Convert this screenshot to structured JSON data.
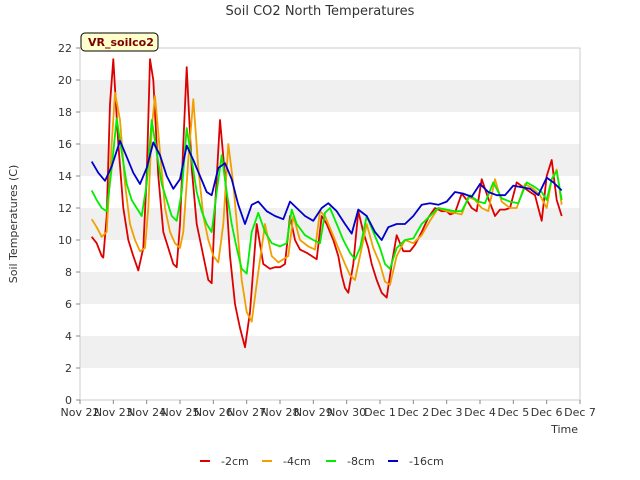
{
  "chart_data": {
    "type": "line",
    "title": "Soil CO2 North Temperatures",
    "xlabel": "Time",
    "ylabel": "Soil Temperatures (C)",
    "badge": "VR_soilco2",
    "ylim": [
      0,
      22
    ],
    "yticks": [
      0,
      2,
      4,
      6,
      8,
      10,
      12,
      14,
      16,
      18,
      20,
      22
    ],
    "xlim": [
      0,
      15
    ],
    "xticks": [
      "Nov 22",
      "Nov 23",
      "Nov 24",
      "Nov 25",
      "Nov 26",
      "Nov 27",
      "Nov 28",
      "Nov 29",
      "Nov 30",
      "Dec 1",
      "Dec 2",
      "Dec 3",
      "Dec 4",
      "Dec 5",
      "Dec 6",
      "Dec 7"
    ],
    "grid": "horizontal bands",
    "legend_position": "bottom",
    "series": [
      {
        "name": "-2cm",
        "color": "#dd0000",
        "x": [
          0.35,
          0.5,
          0.65,
          0.7,
          0.8,
          0.9,
          1.0,
          1.15,
          1.3,
          1.45,
          1.6,
          1.75,
          1.9,
          2.0,
          2.1,
          2.2,
          2.35,
          2.5,
          2.65,
          2.8,
          2.9,
          3.0,
          3.1,
          3.2,
          3.35,
          3.5,
          3.65,
          3.75,
          3.85,
          3.95,
          4.05,
          4.2,
          4.35,
          4.5,
          4.65,
          4.75,
          4.8,
          4.95,
          5.1,
          5.3,
          5.5,
          5.7,
          5.85,
          6.0,
          6.15,
          6.3,
          6.45,
          6.6,
          6.8,
          6.95,
          7.1,
          7.25,
          7.4,
          7.6,
          7.75,
          7.85,
          7.95,
          8.05,
          8.2,
          8.35,
          8.5,
          8.65,
          8.75,
          8.9,
          9.05,
          9.2,
          9.35,
          9.5,
          9.7,
          9.9,
          10.05,
          10.25,
          10.45,
          10.65,
          10.85,
          11.0,
          11.1,
          11.25,
          11.45,
          11.6,
          11.75,
          11.9,
          12.05,
          12.25,
          12.45,
          12.6,
          12.75,
          12.9,
          13.1,
          13.3,
          13.5,
          13.65,
          13.75,
          13.85,
          14.0,
          14.15,
          14.3,
          14.45
        ],
        "values": [
          10.2,
          9.8,
          9.0,
          8.9,
          11.5,
          18.5,
          21.3,
          16.0,
          12.0,
          10.0,
          9.0,
          8.1,
          9.5,
          14.0,
          21.3,
          20.0,
          14.0,
          10.5,
          9.5,
          8.5,
          8.3,
          11.0,
          16.0,
          20.8,
          14.5,
          11.0,
          9.5,
          8.5,
          7.5,
          7.3,
          12.0,
          17.5,
          14.0,
          9.0,
          6.0,
          5.0,
          4.5,
          3.3,
          5.5,
          11.0,
          8.5,
          8.2,
          8.3,
          8.3,
          8.5,
          11.5,
          10.0,
          9.4,
          9.2,
          9.0,
          8.8,
          11.5,
          11.0,
          10.0,
          9.0,
          7.8,
          7.0,
          6.7,
          8.5,
          11.8,
          10.5,
          9.5,
          8.5,
          7.5,
          6.7,
          6.4,
          8.5,
          10.3,
          9.3,
          9.3,
          9.7,
          10.5,
          11.4,
          12.0,
          11.8,
          11.8,
          11.6,
          11.7,
          12.9,
          12.5,
          12.0,
          11.8,
          13.8,
          12.6,
          11.5,
          11.9,
          11.9,
          12.0,
          13.6,
          13.3,
          13.0,
          12.8,
          12.0,
          11.2,
          14.0,
          15.0,
          12.5,
          11.5
        ]
      },
      {
        "name": "-4cm",
        "color": "#f0a000",
        "x": [
          0.35,
          0.5,
          0.65,
          0.8,
          0.95,
          1.05,
          1.2,
          1.35,
          1.5,
          1.65,
          1.8,
          1.95,
          2.05,
          2.15,
          2.25,
          2.4,
          2.55,
          2.7,
          2.85,
          3.0,
          3.1,
          3.25,
          3.4,
          3.55,
          3.7,
          3.85,
          4.0,
          4.15,
          4.3,
          4.45,
          4.6,
          4.75,
          4.85,
          5.0,
          5.15,
          5.35,
          5.55,
          5.75,
          5.95,
          6.1,
          6.25,
          6.4,
          6.6,
          6.85,
          7.05,
          7.2,
          7.35,
          7.55,
          7.75,
          7.95,
          8.1,
          8.25,
          8.4,
          8.6,
          8.8,
          9.0,
          9.15,
          9.3,
          9.5,
          9.75,
          10.0,
          10.25,
          10.5,
          10.75,
          11.0,
          11.2,
          11.45,
          11.65,
          11.85,
          12.05,
          12.25,
          12.45,
          12.65,
          12.9,
          13.1,
          13.35,
          13.6,
          13.8,
          14.0,
          14.15,
          14.3,
          14.45
        ],
        "values": [
          11.3,
          10.8,
          10.2,
          10.5,
          16.0,
          19.2,
          17.5,
          13.5,
          11.0,
          10.0,
          9.3,
          9.5,
          12.0,
          17.0,
          19.0,
          15.5,
          12.0,
          10.5,
          9.8,
          9.5,
          10.5,
          15.0,
          18.8,
          14.5,
          11.5,
          10.0,
          9.0,
          8.6,
          11.0,
          16.0,
          13.5,
          10.0,
          7.5,
          5.5,
          4.9,
          8.0,
          11.0,
          9.0,
          8.6,
          8.8,
          9.0,
          11.5,
          10.0,
          9.6,
          9.4,
          11.8,
          11.5,
          10.5,
          9.5,
          8.5,
          7.8,
          7.5,
          9.0,
          11.0,
          9.5,
          8.5,
          7.4,
          7.2,
          9.0,
          10.0,
          9.8,
          10.3,
          11.2,
          12.0,
          11.8,
          11.7,
          11.6,
          12.7,
          12.5,
          12.0,
          11.8,
          13.8,
          12.4,
          12.0,
          12.0,
          13.5,
          13.2,
          12.8,
          12.0,
          13.8,
          14.4,
          12.2
        ]
      },
      {
        "name": "-8cm",
        "color": "#00ee00",
        "x": [
          0.35,
          0.5,
          0.65,
          0.8,
          0.95,
          1.1,
          1.25,
          1.4,
          1.55,
          1.7,
          1.85,
          2.0,
          2.15,
          2.3,
          2.45,
          2.6,
          2.75,
          2.9,
          3.05,
          3.2,
          3.35,
          3.5,
          3.65,
          3.8,
          3.95,
          4.1,
          4.25,
          4.4,
          4.55,
          4.7,
          4.85,
          5.0,
          5.15,
          5.35,
          5.55,
          5.75,
          6.0,
          6.2,
          6.35,
          6.5,
          6.75,
          7.0,
          7.2,
          7.35,
          7.5,
          7.7,
          7.9,
          8.1,
          8.25,
          8.4,
          8.6,
          8.8,
          9.0,
          9.15,
          9.3,
          9.5,
          9.75,
          10.0,
          10.25,
          10.5,
          10.75,
          11.0,
          11.25,
          11.45,
          11.7,
          11.95,
          12.15,
          12.4,
          12.65,
          12.9,
          13.15,
          13.4,
          13.65,
          13.85,
          14.0,
          14.15,
          14.3,
          14.45
        ],
        "values": [
          13.1,
          12.5,
          12.0,
          11.8,
          14.5,
          17.6,
          15.5,
          13.5,
          12.5,
          12.0,
          11.5,
          13.5,
          17.5,
          15.5,
          13.5,
          12.5,
          11.5,
          11.2,
          13.0,
          17.0,
          15.0,
          13.0,
          11.8,
          11.0,
          10.5,
          13.0,
          15.3,
          13.0,
          11.0,
          9.5,
          8.2,
          7.9,
          10.5,
          11.7,
          10.5,
          9.8,
          9.6,
          9.8,
          11.9,
          11.0,
          10.3,
          10.0,
          9.8,
          11.7,
          12.0,
          11.0,
          10.0,
          9.2,
          8.8,
          9.5,
          11.5,
          10.5,
          9.5,
          8.5,
          8.2,
          9.5,
          10.0,
          10.1,
          11.0,
          11.5,
          12.0,
          11.9,
          11.8,
          11.8,
          12.8,
          12.4,
          12.3,
          13.6,
          12.6,
          12.4,
          12.3,
          13.6,
          13.3,
          13.0,
          12.5,
          13.8,
          14.3,
          12.5
        ]
      },
      {
        "name": "-16cm",
        "color": "#0000cc",
        "x": [
          0.35,
          0.55,
          0.75,
          0.95,
          1.2,
          1.4,
          1.6,
          1.8,
          2.0,
          2.2,
          2.4,
          2.6,
          2.8,
          3.0,
          3.2,
          3.4,
          3.6,
          3.8,
          3.95,
          4.15,
          4.35,
          4.55,
          4.75,
          4.95,
          5.15,
          5.35,
          5.6,
          5.85,
          6.1,
          6.3,
          6.5,
          6.75,
          7.0,
          7.25,
          7.45,
          7.7,
          7.95,
          8.15,
          8.35,
          8.6,
          8.85,
          9.05,
          9.25,
          9.5,
          9.75,
          10.0,
          10.25,
          10.5,
          10.75,
          11.0,
          11.25,
          11.5,
          11.75,
          12.0,
          12.25,
          12.5,
          12.75,
          13.0,
          13.25,
          13.5,
          13.75,
          14.0,
          14.2,
          14.45
        ],
        "values": [
          14.9,
          14.2,
          13.7,
          14.6,
          16.2,
          15.2,
          14.2,
          13.5,
          14.5,
          16.1,
          15.3,
          14.0,
          13.2,
          13.8,
          15.9,
          15.0,
          14.0,
          13.0,
          12.8,
          14.5,
          14.8,
          13.8,
          12.2,
          11.0,
          12.2,
          12.4,
          11.8,
          11.5,
          11.3,
          12.4,
          12.0,
          11.5,
          11.2,
          12.0,
          12.3,
          11.8,
          11.0,
          10.4,
          11.9,
          11.5,
          10.5,
          10.0,
          10.8,
          11.0,
          11.0,
          11.5,
          12.2,
          12.3,
          12.2,
          12.4,
          13.0,
          12.9,
          12.7,
          13.5,
          13.0,
          12.8,
          12.8,
          13.4,
          13.3,
          13.2,
          12.8,
          13.9,
          13.6,
          13.1
        ]
      }
    ]
  }
}
